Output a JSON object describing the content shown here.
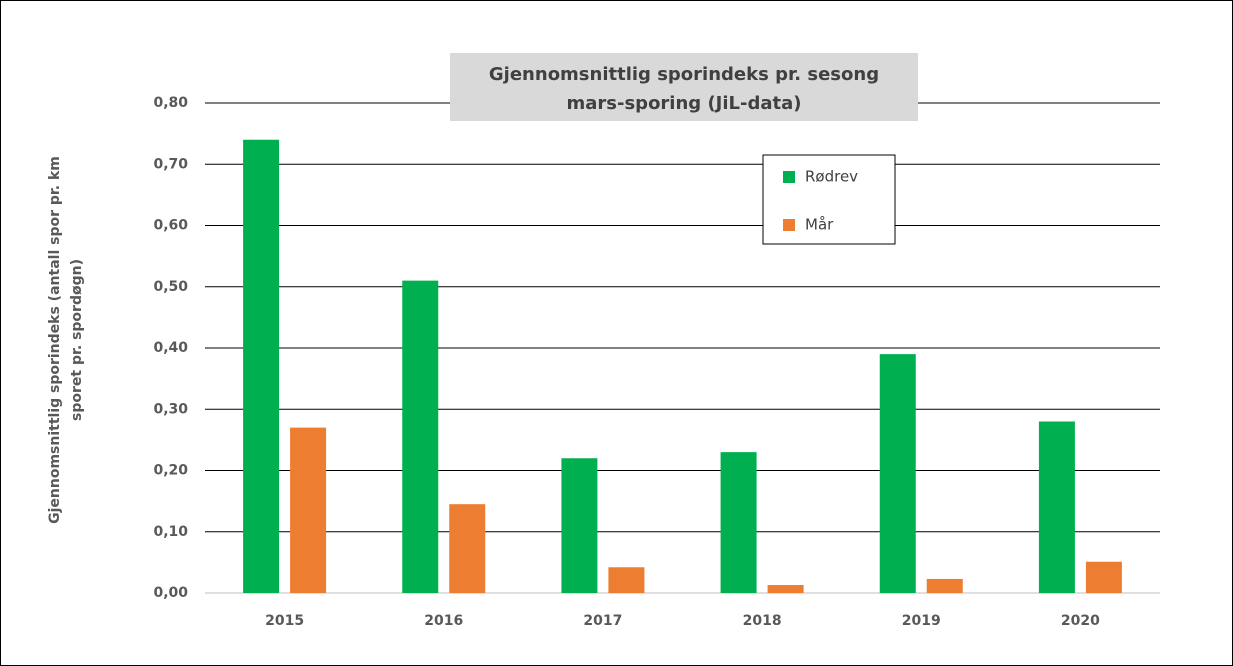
{
  "chart_data": {
    "type": "bar",
    "title": [
      "Gjennomsnittlig sporindeks pr.  sesong",
      "mars-sporing (JiL-data)"
    ],
    "y_label": [
      "Gjennomsnittlig sporindeks (antall spor pr. km",
      "sporet pr. spordøgn)"
    ],
    "categories": [
      "2015",
      "2016",
      "2017",
      "2018",
      "2019",
      "2020"
    ],
    "series": [
      {
        "name": "Rødrev",
        "color": "#00b050",
        "values": [
          0.74,
          0.51,
          0.22,
          0.23,
          0.39,
          0.28
        ]
      },
      {
        "name": "Mår",
        "color": "#ed7d31",
        "values": [
          0.27,
          0.145,
          0.042,
          0.013,
          0.023,
          0.051
        ]
      }
    ],
    "ylim": [
      0,
      0.8
    ],
    "yticks": [
      {
        "value": 0,
        "label": "0,00"
      },
      {
        "value": 0.1,
        "label": "0,10"
      },
      {
        "value": 0.2,
        "label": "0,20"
      },
      {
        "value": 0.3,
        "label": "0,30"
      },
      {
        "value": 0.4,
        "label": "0,40"
      },
      {
        "value": 0.5,
        "label": "0,50"
      },
      {
        "value": 0.6,
        "label": "0,60"
      },
      {
        "value": 0.7,
        "label": "0,70"
      },
      {
        "value": 0.8,
        "label": "0,80"
      }
    ],
    "grid": true,
    "legend": "upper right"
  }
}
